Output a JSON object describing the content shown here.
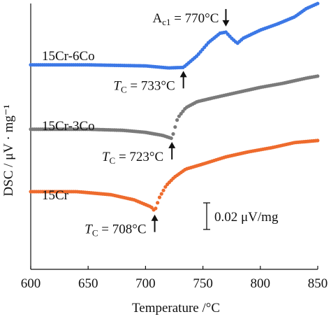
{
  "chart_data": {
    "type": "scatter",
    "title": "",
    "xlabel": "Temperature /°C",
    "ylabel": "DSC / μV · mg⁻¹",
    "xlim": [
      600,
      850
    ],
    "xticks": [
      600,
      650,
      700,
      750,
      800,
      850
    ],
    "y_units": "μV/mg (relative, curves offset vertically)",
    "ylim": [
      0,
      0.26
    ],
    "grid": false,
    "legend": "none (series labelled directly on curves)",
    "scale_bar": {
      "value": 0.02,
      "label": "0.02 μV/mg"
    },
    "series": [
      {
        "name": "15Cr-6Co",
        "color": "#3c78e6",
        "points": [
          [
            600,
            0.2
          ],
          [
            650,
            0.2
          ],
          [
            700,
            0.199
          ],
          [
            720,
            0.197
          ],
          [
            733,
            0.1975
          ],
          [
            745,
            0.209
          ],
          [
            755,
            0.222
          ],
          [
            765,
            0.231
          ],
          [
            770,
            0.232
          ],
          [
            775,
            0.226
          ],
          [
            780,
            0.221
          ],
          [
            785,
            0.226
          ],
          [
            800,
            0.234
          ],
          [
            815,
            0.24
          ],
          [
            830,
            0.247
          ],
          [
            840,
            0.255
          ],
          [
            850,
            0.26
          ]
        ],
        "annotations": [
          {
            "label": "T",
            "sub": "C",
            "value": "= 733°C",
            "x": 733,
            "arrow": "up"
          },
          {
            "label": "A",
            "sub": "c1",
            "value": "= 770°C",
            "x": 770,
            "arrow": "down"
          }
        ]
      },
      {
        "name": "15Cr-3Co",
        "color": "#7a7a7a",
        "points": [
          [
            600,
            0.137
          ],
          [
            650,
            0.137
          ],
          [
            680,
            0.136
          ],
          [
            700,
            0.134
          ],
          [
            715,
            0.131
          ],
          [
            723,
            0.128
          ],
          [
            728,
            0.148
          ],
          [
            735,
            0.158
          ],
          [
            745,
            0.164
          ],
          [
            760,
            0.168
          ],
          [
            780,
            0.173
          ],
          [
            800,
            0.178
          ],
          [
            820,
            0.182
          ],
          [
            840,
            0.187
          ],
          [
            850,
            0.189
          ]
        ],
        "annotations": [
          {
            "label": "T",
            "sub": "C",
            "value": "= 723°C",
            "x": 723,
            "arrow": "up"
          }
        ]
      },
      {
        "name": "15Cr",
        "color": "#ee6b2d",
        "points": [
          [
            600,
            0.076
          ],
          [
            640,
            0.076
          ],
          [
            670,
            0.073
          ],
          [
            690,
            0.068
          ],
          [
            705,
            0.061
          ],
          [
            708,
            0.057
          ],
          [
            712,
            0.07
          ],
          [
            718,
            0.082
          ],
          [
            725,
            0.09
          ],
          [
            735,
            0.098
          ],
          [
            750,
            0.103
          ],
          [
            770,
            0.11
          ],
          [
            790,
            0.115
          ],
          [
            810,
            0.119
          ],
          [
            830,
            0.124
          ],
          [
            850,
            0.126
          ]
        ],
        "annotations": [
          {
            "label": "T",
            "sub": "C",
            "value": "= 708°C",
            "x": 708,
            "arrow": "up"
          }
        ]
      }
    ]
  }
}
